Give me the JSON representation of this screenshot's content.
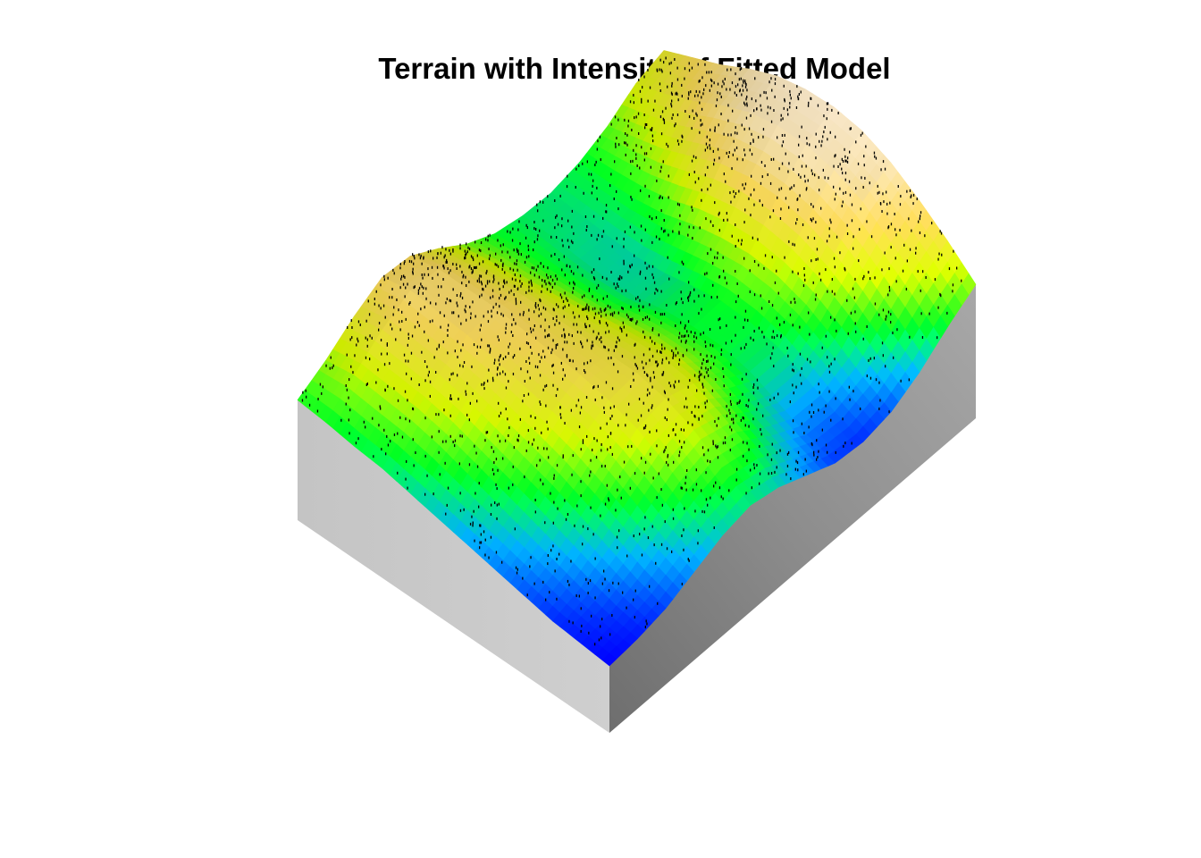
{
  "chart_data": {
    "type": "surface",
    "title": "Terrain with Intensity of Fitted Model",
    "xlabel": "",
    "ylabel": "",
    "zlabel": "",
    "axes_shown": false,
    "grid": false,
    "legend": "none",
    "rows": 12,
    "cols": 14,
    "elevation": [
      [
        0.35,
        0.45,
        0.58,
        0.68,
        0.66,
        0.55,
        0.42,
        0.33,
        0.29,
        0.28,
        0.32,
        0.4,
        0.52,
        0.58
      ],
      [
        0.33,
        0.48,
        0.62,
        0.72,
        0.7,
        0.58,
        0.45,
        0.34,
        0.28,
        0.27,
        0.32,
        0.45,
        0.58,
        0.66
      ],
      [
        0.3,
        0.46,
        0.6,
        0.7,
        0.7,
        0.6,
        0.46,
        0.34,
        0.26,
        0.25,
        0.33,
        0.5,
        0.66,
        0.74
      ],
      [
        0.28,
        0.44,
        0.58,
        0.68,
        0.7,
        0.62,
        0.48,
        0.35,
        0.25,
        0.24,
        0.36,
        0.58,
        0.76,
        0.84
      ],
      [
        0.24,
        0.4,
        0.54,
        0.64,
        0.68,
        0.62,
        0.5,
        0.36,
        0.26,
        0.26,
        0.42,
        0.66,
        0.84,
        0.92
      ],
      [
        0.2,
        0.34,
        0.48,
        0.6,
        0.66,
        0.62,
        0.52,
        0.4,
        0.3,
        0.3,
        0.46,
        0.7,
        0.88,
        0.96
      ],
      [
        0.16,
        0.28,
        0.42,
        0.56,
        0.64,
        0.62,
        0.54,
        0.42,
        0.32,
        0.33,
        0.48,
        0.7,
        0.88,
        0.97
      ],
      [
        0.12,
        0.22,
        0.36,
        0.5,
        0.6,
        0.62,
        0.55,
        0.42,
        0.32,
        0.32,
        0.46,
        0.66,
        0.84,
        0.94
      ],
      [
        0.08,
        0.16,
        0.28,
        0.42,
        0.54,
        0.58,
        0.52,
        0.38,
        0.28,
        0.28,
        0.4,
        0.58,
        0.76,
        0.86
      ],
      [
        0.04,
        0.1,
        0.2,
        0.32,
        0.44,
        0.5,
        0.44,
        0.3,
        0.2,
        0.2,
        0.3,
        0.46,
        0.62,
        0.74
      ],
      [
        0.02,
        0.05,
        0.12,
        0.22,
        0.32,
        0.38,
        0.34,
        0.22,
        0.12,
        0.11,
        0.18,
        0.32,
        0.48,
        0.6
      ],
      [
        0.0,
        0.02,
        0.06,
        0.14,
        0.22,
        0.26,
        0.22,
        0.14,
        0.06,
        0.04,
        0.08,
        0.18,
        0.32,
        0.44
      ]
    ],
    "colormap": [
      "#0000ff",
      "#00a0ff",
      "#00ff20",
      "#c8e600",
      "#e6c850",
      "#e6d2a0",
      "#f0e0c8"
    ],
    "side_colors": {
      "left": "#c8c8c8",
      "right": "#8a8a8a"
    },
    "point_color": "#000000",
    "point_count": 2400
  }
}
